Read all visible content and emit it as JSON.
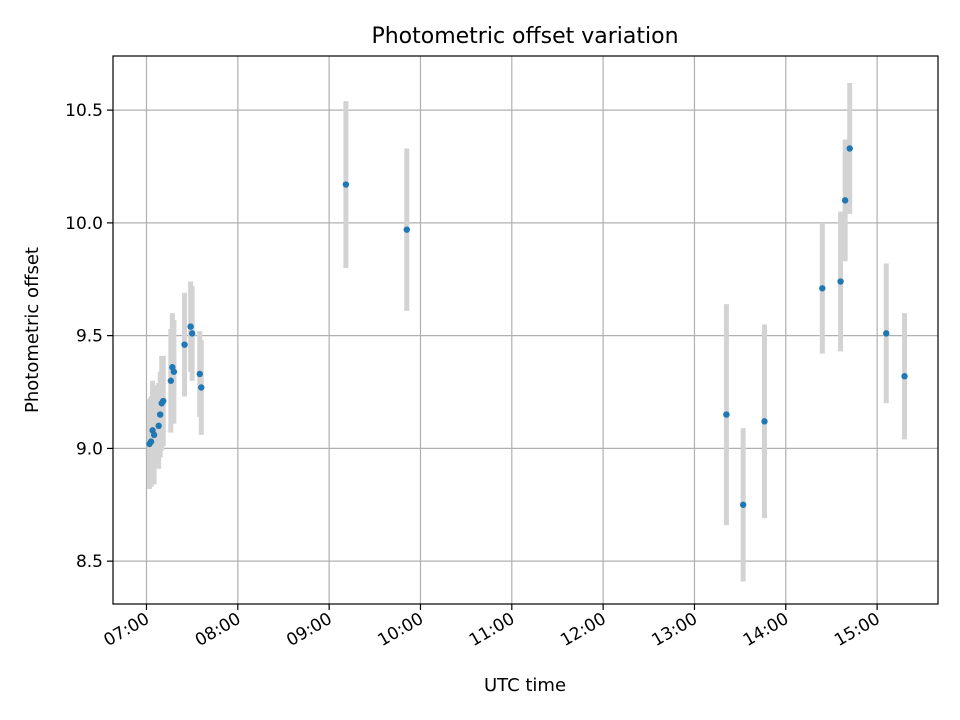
{
  "chart_data": {
    "type": "scatter",
    "title": "Photometric offset variation",
    "xlabel": "UTC time",
    "ylabel": "Photometric offset",
    "xlim": [
      "06:38",
      "15:40"
    ],
    "ylim": [
      8.31,
      10.74
    ],
    "x_ticks": [
      "07:00",
      "08:00",
      "09:00",
      "10:00",
      "11:00",
      "12:00",
      "13:00",
      "14:00",
      "15:00"
    ],
    "y_ticks": [
      "8.5",
      "9.0",
      "9.5",
      "10.0",
      "10.5"
    ],
    "grid": true,
    "colors": {
      "point": "#1f77b4",
      "errorbar": "#d3d3d3",
      "grid": "#b0b0b0"
    },
    "points": [
      {
        "x": "07:02",
        "y": 9.02,
        "err": 0.2
      },
      {
        "x": "07:03",
        "y": 9.03,
        "err": 0.2
      },
      {
        "x": "07:04",
        "y": 9.08,
        "err": 0.22
      },
      {
        "x": "07:05",
        "y": 9.06,
        "err": 0.22
      },
      {
        "x": "07:08",
        "y": 9.1,
        "err": 0.19
      },
      {
        "x": "07:09",
        "y": 9.15,
        "err": 0.19
      },
      {
        "x": "07:10",
        "y": 9.2,
        "err": 0.21
      },
      {
        "x": "07:11",
        "y": 9.21,
        "err": 0.2
      },
      {
        "x": "07:16",
        "y": 9.3,
        "err": 0.23
      },
      {
        "x": "07:17",
        "y": 9.36,
        "err": 0.24
      },
      {
        "x": "07:18",
        "y": 9.34,
        "err": 0.23
      },
      {
        "x": "07:25",
        "y": 9.46,
        "err": 0.23
      },
      {
        "x": "07:29",
        "y": 9.54,
        "err": 0.2
      },
      {
        "x": "07:30",
        "y": 9.51,
        "err": 0.21
      },
      {
        "x": "07:35",
        "y": 9.33,
        "err": 0.19
      },
      {
        "x": "07:36",
        "y": 9.27,
        "err": 0.21
      },
      {
        "x": "09:11",
        "y": 10.17,
        "err": 0.37
      },
      {
        "x": "09:51",
        "y": 9.97,
        "err": 0.36
      },
      {
        "x": "13:21",
        "y": 9.15,
        "err": 0.49
      },
      {
        "x": "13:32",
        "y": 8.75,
        "err": 0.34
      },
      {
        "x": "13:46",
        "y": 9.12,
        "err": 0.43
      },
      {
        "x": "14:24",
        "y": 9.71,
        "err": 0.29
      },
      {
        "x": "14:36",
        "y": 9.74,
        "err": 0.31
      },
      {
        "x": "14:39",
        "y": 10.1,
        "err": 0.27
      },
      {
        "x": "14:42",
        "y": 10.33,
        "err": 0.29
      },
      {
        "x": "15:06",
        "y": 9.51,
        "err": 0.31
      },
      {
        "x": "15:18",
        "y": 9.32,
        "err": 0.28
      }
    ]
  }
}
